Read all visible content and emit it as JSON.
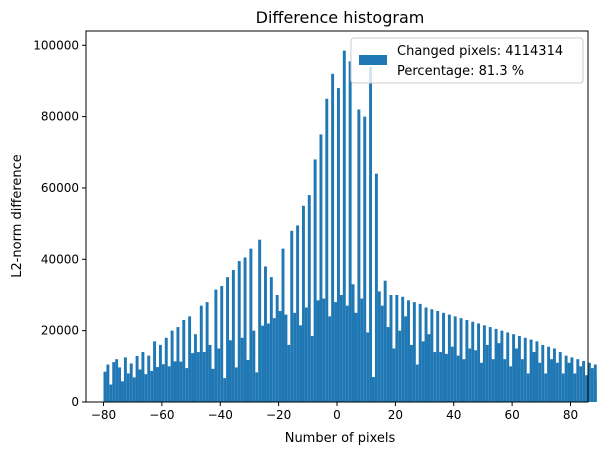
{
  "chart_data": {
    "type": "bar",
    "title": "Difference histogram",
    "xlabel": "Number of pixels",
    "ylabel": "L2-norm difference",
    "xlim": [
      -86,
      86
    ],
    "ylim": [
      0,
      104000
    ],
    "xticks": [
      -80,
      -60,
      -40,
      -20,
      0,
      20,
      40,
      60,
      80
    ],
    "yticks": [
      0,
      20000,
      40000,
      60000,
      80000,
      100000
    ],
    "bar_color": "#1f77b4",
    "grid": false,
    "legend": {
      "placement": "top-right",
      "entries": [
        "Changed pixels: 4114314",
        "Percentage: 81.3 %"
      ]
    },
    "bin_start": -80,
    "bin_width": 1,
    "values": [
      8500,
      10500,
      4900,
      11200,
      12000,
      9700,
      5800,
      12500,
      8000,
      10800,
      6900,
      12900,
      9100,
      14000,
      7800,
      13000,
      8700,
      17000,
      9800,
      16000,
      10600,
      18000,
      10000,
      20000,
      11400,
      21000,
      11300,
      23000,
      9500,
      24000,
      13700,
      19000,
      14000,
      27000,
      14000,
      28000,
      16000,
      9300,
      31500,
      15000,
      32500,
      6700,
      35000,
      17300,
      37000,
      9700,
      39500,
      18000,
      40500,
      11800,
      43000,
      20000,
      8300,
      45500,
      21400,
      38000,
      22000,
      35000,
      23500,
      30000,
      25500,
      43000,
      24500,
      16000,
      48000,
      25000,
      49500,
      21500,
      55000,
      26500,
      58000,
      18500,
      68000,
      28500,
      75000,
      29000,
      85000,
      24000,
      92000,
      28000,
      88000,
      30000,
      98500,
      27000,
      95500,
      33000,
      25000,
      82000,
      29000,
      80000,
      19500,
      94000,
      7000,
      64000,
      31000,
      27000,
      34000,
      21000,
      30000,
      15000,
      30000,
      20000,
      29500,
      24000,
      28500,
      16000,
      28000,
      10500,
      27500,
      17000,
      26500,
      19000,
      26000,
      14000,
      25500,
      14000,
      25000,
      13500,
      24500,
      15500,
      24000,
      13000,
      23500,
      12000,
      23000,
      15000,
      22500,
      14500,
      22000,
      11000,
      21500,
      16000,
      21000,
      12000,
      20500,
      16500,
      20000,
      12000,
      19500,
      10000,
      19000,
      15000,
      18500,
      12000,
      18000,
      8000,
      17500,
      14000,
      17000,
      11000,
      16000,
      8000,
      15500,
      12000,
      15000,
      11000,
      14000,
      8000,
      13000,
      11000,
      12500,
      8000,
      12000,
      10000,
      11500,
      7500,
      11000,
      9500,
      10500,
      6000,
      10000,
      9500
    ]
  }
}
